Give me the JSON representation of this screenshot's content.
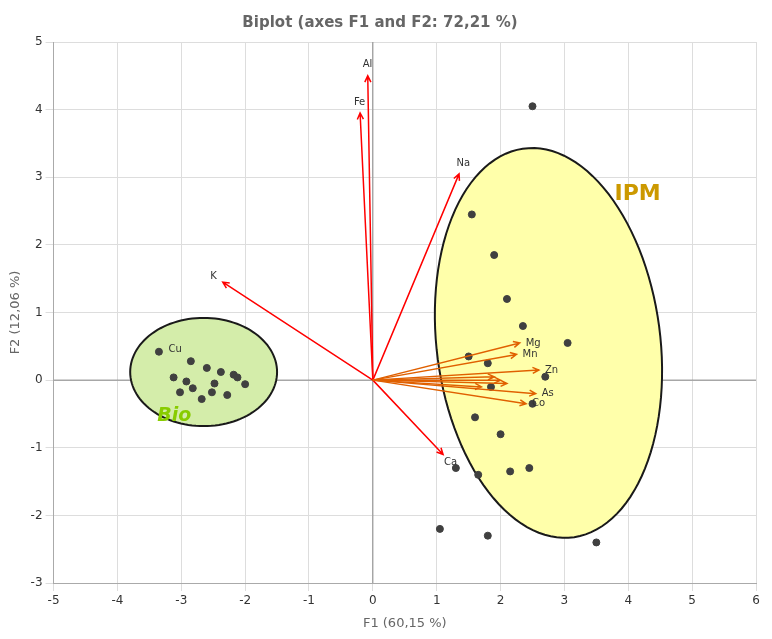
{
  "chart_data": {
    "type": "scatter",
    "title": "Biplot (axes F1 and F2: 72,21 %)",
    "xlabel": "F1 (60,15 %)",
    "ylabel": "F2 (12,06 %)",
    "xlim": [
      -5,
      6
    ],
    "ylim": [
      -3,
      5
    ],
    "xticks": [
      -5,
      -4,
      -3,
      -2,
      -1,
      0,
      1,
      2,
      3,
      4,
      5,
      6
    ],
    "yticks": [
      -3,
      -2,
      -1,
      0,
      1,
      2,
      3,
      4,
      5
    ],
    "grid": true,
    "series": [
      {
        "color": "#404040",
        "x": [
          -3.35,
          -2.85,
          -2.6,
          -2.38,
          -2.18,
          -2.48,
          -2.82,
          -3.02,
          -2.28,
          -2.68,
          -2.92,
          -2.12,
          -3.12,
          -2.52,
          -2.0
        ],
        "y": [
          0.42,
          0.28,
          0.18,
          0.12,
          0.08,
          -0.05,
          -0.12,
          -0.18,
          -0.22,
          -0.28,
          -0.02,
          0.04,
          0.04,
          -0.18,
          -0.06
        ]
      },
      {
        "color": "#404040",
        "x": [
          2.5,
          1.55,
          1.9,
          2.1,
          2.35,
          3.05,
          1.5,
          1.8,
          2.7,
          1.85,
          2.5,
          1.6,
          2.0,
          1.3,
          1.65,
          2.15,
          2.45,
          1.8,
          3.5,
          1.05
        ],
        "y": [
          4.05,
          2.45,
          1.85,
          1.2,
          0.8,
          0.55,
          0.35,
          0.25,
          0.05,
          -0.1,
          -0.35,
          -0.55,
          -0.8,
          -1.3,
          -1.4,
          -1.35,
          -1.3,
          -2.3,
          -2.4,
          -2.2
        ]
      }
    ],
    "arrows": [
      {
        "label": "Al",
        "x": -0.08,
        "y": 4.5,
        "color": "#ff0000"
      },
      {
        "label": "Fe",
        "x": -0.2,
        "y": 3.95,
        "color": "#ff0000"
      },
      {
        "label": "Na",
        "x": 1.35,
        "y": 3.05,
        "color": "#ff0000"
      },
      {
        "label": "K",
        "x": -2.35,
        "y": 1.45,
        "color": "#ff0000"
      },
      {
        "label": "Ca",
        "x": 1.1,
        "y": -1.1,
        "color": "#ff0000"
      },
      {
        "label": "Mg",
        "x": 2.3,
        "y": 0.55,
        "color": "#e06000"
      },
      {
        "label": "Mn",
        "x": 2.25,
        "y": 0.38,
        "color": "#e06000"
      },
      {
        "label": "Zn",
        "x": 2.6,
        "y": 0.15,
        "color": "#e06000"
      },
      {
        "label": "As",
        "x": 2.55,
        "y": -0.2,
        "color": "#e06000"
      },
      {
        "label": "Co",
        "x": 2.4,
        "y": -0.35,
        "color": "#e06000"
      },
      {
        "x": 1.9,
        "y": 0.05,
        "color": "#e06000"
      },
      {
        "x": 2.1,
        "y": -0.05,
        "color": "#e06000"
      },
      {
        "x": 1.7,
        "y": -0.1,
        "color": "#e06000"
      },
      {
        "x": 2.0,
        "y": 0.0,
        "color": "#e06000"
      }
    ],
    "ellipses": [
      {
        "label": "IPM",
        "cx": 2.75,
        "cy": 0.55,
        "width": 3.5,
        "height": 5.8,
        "angle": 8,
        "fill_color": "#ffffaa",
        "edge_color": "#1a1a1a",
        "label_color": "#cc9900"
      },
      {
        "label": "Bio",
        "cx": -2.65,
        "cy": 0.12,
        "width": 2.3,
        "height": 1.6,
        "angle": 0,
        "fill_color": "#d4edaa",
        "edge_color": "#1a1a1a",
        "label_color": "#88cc00"
      }
    ],
    "annotations": [
      {
        "text": "Cu",
        "x": -3.2,
        "y": 0.42
      }
    ]
  }
}
